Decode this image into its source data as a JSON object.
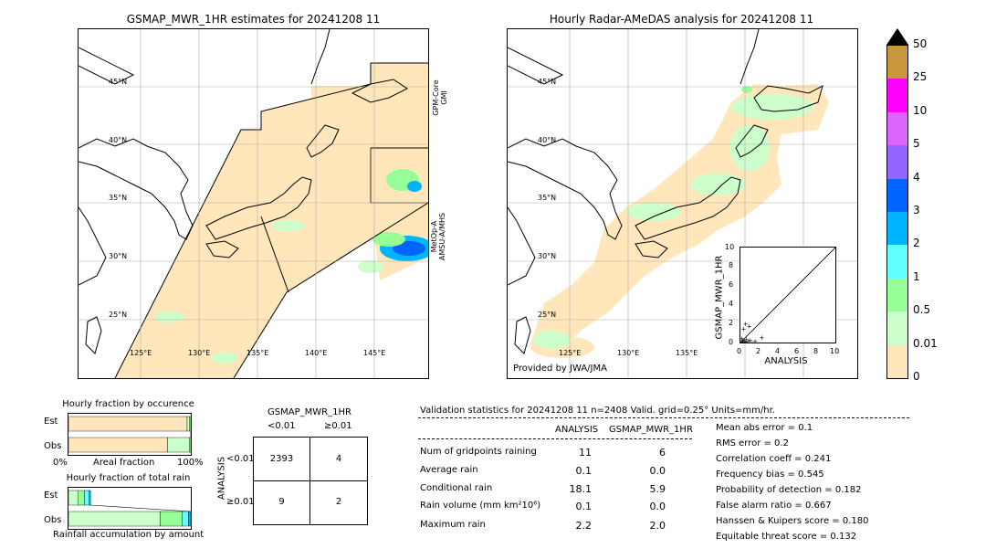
{
  "left_map": {
    "title": "GSMAP_MWR_1HR estimates for 20241208 11",
    "lat_labels": [
      "45°N",
      "40°N",
      "35°N",
      "30°N",
      "25°N"
    ],
    "lon_labels": [
      "125°E",
      "130°E",
      "135°E",
      "140°E",
      "145°E"
    ],
    "sat_label_1a": "GPM-Core",
    "sat_label_1b": "GMI",
    "sat_label_2a": "MetOp-A",
    "sat_label_2b": "AMSU-A/MHS"
  },
  "right_map": {
    "title": "Hourly Radar-AMeDAS analysis for 20241208 11",
    "lat_labels": [
      "45°N",
      "40°N",
      "35°N",
      "30°N",
      "25°N"
    ],
    "lon_labels": [
      "125°E",
      "130°E",
      "135°E"
    ],
    "provided_by": "Provided by JWA/JMA"
  },
  "colorbar": {
    "labels": [
      "50",
      "25",
      "10",
      "5",
      "4",
      "3",
      "2",
      "1",
      "0.5",
      "0.01",
      "0"
    ],
    "colors": [
      "#c8963c",
      "#ff00ff",
      "#dc64ff",
      "#9664ff",
      "#0064ff",
      "#00b4ff",
      "#64ffff",
      "#96ff96",
      "#ccffcc",
      "#ffe6bb"
    ]
  },
  "scatter": {
    "ylabel": "GSMAP_MWR_1HR",
    "xlabel": "ANALYSIS",
    "ticks": [
      "0",
      "2",
      "4",
      "6",
      "8",
      "10"
    ]
  },
  "occurrence": {
    "title": "Hourly fraction by occurence",
    "est_label": "Est",
    "obs_label": "Obs",
    "axis_left": "0%",
    "axis_mid": "Areal fraction",
    "axis_right": "100%"
  },
  "total_rain": {
    "title": "Hourly fraction of total rain",
    "est_label": "Est",
    "obs_label": "Obs",
    "footer": "Rainfall accumulation by amount"
  },
  "contingency": {
    "title": "GSMAP_MWR_1HR",
    "col1": "<0.01",
    "col2": "≥0.01",
    "row_axis": "ANALYSIS",
    "row1": "<0.01",
    "row2": "≥0.01",
    "a": "2393",
    "b": "4",
    "c": "9",
    "d": "2"
  },
  "validation": {
    "header": "Validation statistics for 20241208 11  n=2408 Valid. grid=0.25° Units=mm/hr.",
    "col_analysis": "ANALYSIS",
    "col_gsmap": "GSMAP_MWR_1HR",
    "rows": [
      {
        "label": "Num of gridpoints raining",
        "analysis": "11",
        "gsmap": "6"
      },
      {
        "label": "Average rain",
        "analysis": "0.1",
        "gsmap": "0.0"
      },
      {
        "label": "Conditional rain",
        "analysis": "18.1",
        "gsmap": "5.9"
      },
      {
        "label": "Rain volume (mm km²10⁶)",
        "analysis": "0.1",
        "gsmap": "0.0"
      },
      {
        "label": "Maximum rain",
        "analysis": "2.2",
        "gsmap": "2.0"
      }
    ],
    "scores": [
      "Mean abs error =    0.1",
      "RMS error =    0.2",
      "Correlation coeff =  0.241",
      "Frequency bias =  0.545",
      "Probability of detection =  0.182",
      "False alarm ratio =  0.667",
      "Hanssen & Kuipers score =  0.180",
      "Equitable threat score =  0.132"
    ]
  },
  "chart_data": [
    {
      "type": "scatter",
      "title": "",
      "xlabel": "ANALYSIS",
      "ylabel": "GSMAP_MWR_1HR",
      "xlim": [
        0,
        10
      ],
      "ylim": [
        0,
        10
      ],
      "points": [
        [
          0.1,
          0.0
        ],
        [
          0.2,
          0.1
        ],
        [
          0.3,
          0.0
        ],
        [
          0.4,
          0.2
        ],
        [
          0.2,
          0.3
        ],
        [
          0.5,
          0.1
        ],
        [
          0.6,
          0.4
        ],
        [
          0.8,
          0.2
        ],
        [
          1.0,
          0.3
        ],
        [
          1.2,
          0.0
        ],
        [
          1.5,
          0.2
        ],
        [
          2.2,
          0.6
        ],
        [
          0.3,
          1.5
        ],
        [
          0.5,
          2.0
        ],
        [
          0.9,
          1.8
        ],
        [
          0.1,
          0.5
        ],
        [
          0.7,
          0.0
        ]
      ]
    },
    {
      "type": "bar",
      "title": "Hourly fraction by occurence",
      "categories": [
        "Est",
        "Obs"
      ],
      "series": [
        {
          "values": [
            0.97,
            0.81
          ],
          "color": "#ffe6bb"
        },
        {
          "values": [
            0.02,
            0.18
          ],
          "color": "#ccffcc"
        },
        {
          "values": [
            0.01,
            0.01
          ],
          "color": "#96ff96"
        }
      ]
    },
    {
      "type": "bar",
      "title": "Hourly fraction of total rain",
      "categories": [
        "Est",
        "Obs"
      ],
      "series": [
        {
          "values": [
            0.08,
            0.75
          ],
          "color": "#ccffcc"
        },
        {
          "values": [
            0.05,
            0.18
          ],
          "color": "#96ff96"
        },
        {
          "values": [
            0.04,
            0.05
          ],
          "color": "#64ffff"
        },
        {
          "values": [
            0.01,
            0.02
          ],
          "color": "#00b4ff"
        }
      ]
    }
  ]
}
